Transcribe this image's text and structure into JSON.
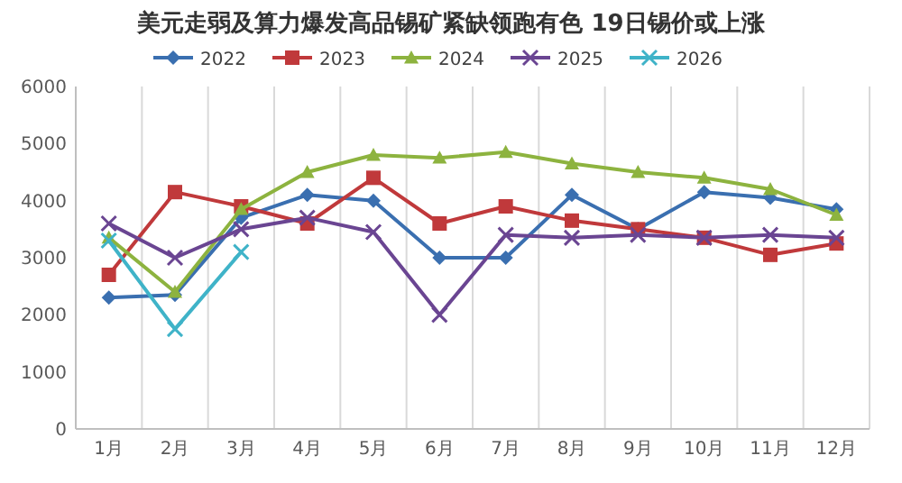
{
  "chart_data": {
    "type": "line",
    "title": "美元走弱及算力爆发高品锡矿紧缺领跑有色 19日锡价或上涨",
    "categories": [
      "1月",
      "2月",
      "3月",
      "4月",
      "5月",
      "6月",
      "7月",
      "8月",
      "9月",
      "10月",
      "11月",
      "12月"
    ],
    "ylim": [
      0,
      6000
    ],
    "yticks": [
      0,
      1000,
      2000,
      3000,
      4000,
      5000,
      6000
    ],
    "grid": "x",
    "legend": "top",
    "series": [
      {
        "name": "2022",
        "color": "#3a6fb0",
        "marker": "diamond",
        "values": [
          2300,
          2350,
          3700,
          4100,
          4000,
          3000,
          3000,
          4100,
          3500,
          4150,
          4050,
          3850
        ]
      },
      {
        "name": "2023",
        "color": "#c0393b",
        "marker": "square",
        "values": [
          2700,
          4150,
          3900,
          3600,
          4400,
          3600,
          3900,
          3650,
          3500,
          3350,
          3050,
          3250
        ]
      },
      {
        "name": "2024",
        "color": "#8db33f",
        "marker": "triangle",
        "values": [
          3350,
          2400,
          3850,
          4500,
          4800,
          4750,
          4850,
          4650,
          4500,
          4400,
          4200,
          3750
        ]
      },
      {
        "name": "2025",
        "color": "#6a4592",
        "marker": "cross",
        "values": [
          3600,
          3000,
          3500,
          3700,
          3450,
          2000,
          3400,
          3350,
          3400,
          3350,
          3400,
          3350
        ]
      },
      {
        "name": "2026",
        "color": "#3fb3c8",
        "marker": "cross",
        "values": [
          3300,
          1750,
          3100,
          null,
          null,
          null,
          null,
          null,
          null,
          null,
          null,
          null
        ]
      }
    ]
  }
}
